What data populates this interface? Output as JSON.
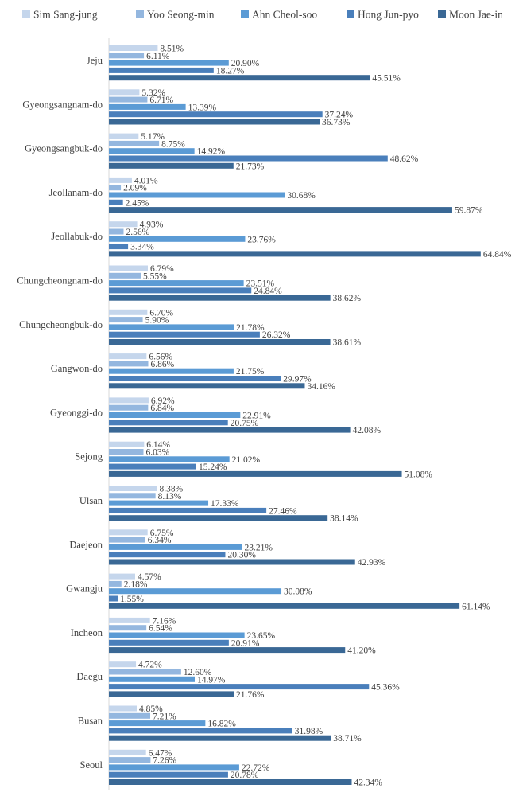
{
  "chart_data": {
    "type": "bar",
    "orientation": "horizontal",
    "value_format": "percent",
    "grid": false,
    "legend_position": "top",
    "xlim": [
      0,
      70
    ],
    "categories": [
      "Jeju",
      "Gyeongsangnam-do",
      "Gyeongsangbuk-do",
      "Jeollanam-do",
      "Jeollabuk-do",
      "Chungcheongnam-do",
      "Chungcheongbuk-do",
      "Gangwon-do",
      "Gyeonggi-do",
      "Sejong",
      "Ulsan",
      "Daejeon",
      "Gwangju",
      "Incheon",
      "Daegu",
      "Busan",
      "Seoul"
    ],
    "series": [
      {
        "name": "Sim Sang-jung",
        "color": "#c5d6ec",
        "values": [
          8.51,
          5.32,
          5.17,
          4.01,
          4.93,
          6.79,
          6.7,
          6.56,
          6.92,
          6.14,
          8.38,
          6.75,
          4.57,
          7.16,
          4.72,
          4.85,
          6.47
        ]
      },
      {
        "name": "Yoo Seong-min",
        "color": "#94b7df",
        "values": [
          6.11,
          6.71,
          8.75,
          2.09,
          2.56,
          5.55,
          5.9,
          6.86,
          6.84,
          6.03,
          8.13,
          6.34,
          2.18,
          6.54,
          12.6,
          7.21,
          7.26
        ]
      },
      {
        "name": "Ahn Cheol-soo",
        "color": "#5b9bd5",
        "values": [
          20.9,
          13.39,
          14.92,
          30.68,
          23.76,
          23.51,
          21.78,
          21.75,
          22.91,
          21.02,
          17.33,
          23.21,
          30.08,
          23.65,
          14.97,
          16.82,
          22.72
        ]
      },
      {
        "name": "Hong Jun-pyo",
        "color": "#4a7fbb",
        "values": [
          18.27,
          37.24,
          48.62,
          2.45,
          3.34,
          24.84,
          26.32,
          29.97,
          20.75,
          15.24,
          27.46,
          20.3,
          1.55,
          20.91,
          45.36,
          31.98,
          20.78
        ]
      },
      {
        "name": "Moon Jae-in",
        "color": "#3a6895",
        "values": [
          45.51,
          36.73,
          21.73,
          59.87,
          64.84,
          38.62,
          38.61,
          34.16,
          42.08,
          51.08,
          38.14,
          42.93,
          61.14,
          41.2,
          21.76,
          38.71,
          42.34
        ]
      }
    ]
  }
}
